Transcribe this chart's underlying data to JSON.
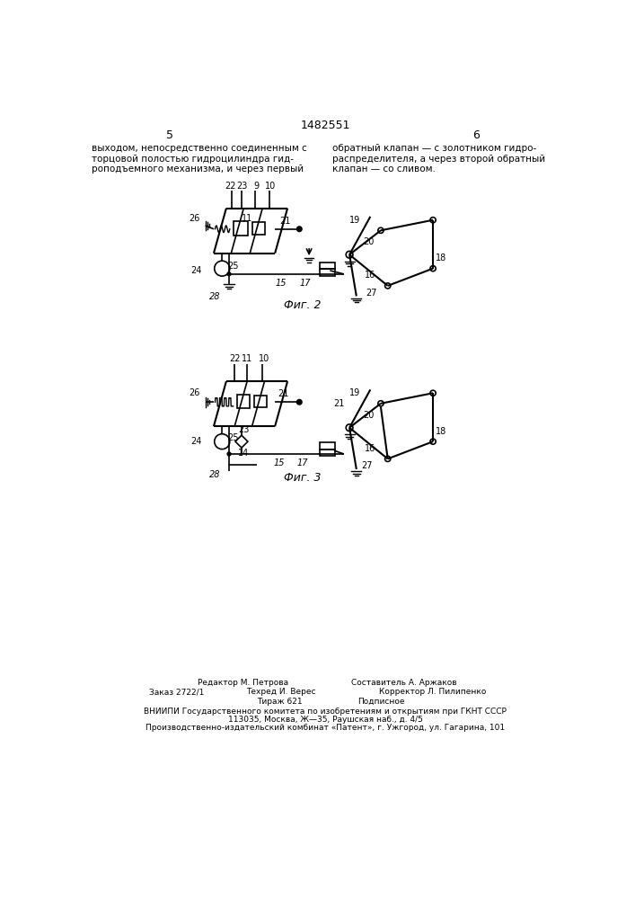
{
  "title": "1482551",
  "page_left": "5",
  "page_right": "6",
  "text_left": "выходом, непосредственно соединенным с\nторцовой полостью гидроцилиндра гид-\nроподъемного механизма, и через первый",
  "text_right": "обратный клапан — с золотником гидро-\nраспределителя, а через второй обратный\nклапан — со сливом.",
  "fig2_caption": "Фиг. 2",
  "fig3_caption": "Фиг. 3",
  "footer_lines": [
    [
      "Редактор М. Петрова",
      170,
      "Составитель А. Аржаков",
      390
    ],
    [
      "Заказ 2722/1",
      100,
      "Техред И. Верес",
      260,
      "Корректор Л. Пилипенко",
      430
    ],
    [
      "Тираж 621",
      260,
      "Подписное",
      400
    ],
    [
      "ВНИИПИ Государственного комитета по изобретениям и открытиям при ГКНТ СССР",
      353
    ],
    [
      "113035, Москва, Ж—35, Раушская наб., д. 4/5",
      353
    ],
    [
      "Производственно-издательский комбинат «Патент», г. Ужгород, ул. Гагарина, 101",
      353
    ]
  ],
  "bg_color": "#ffffff"
}
